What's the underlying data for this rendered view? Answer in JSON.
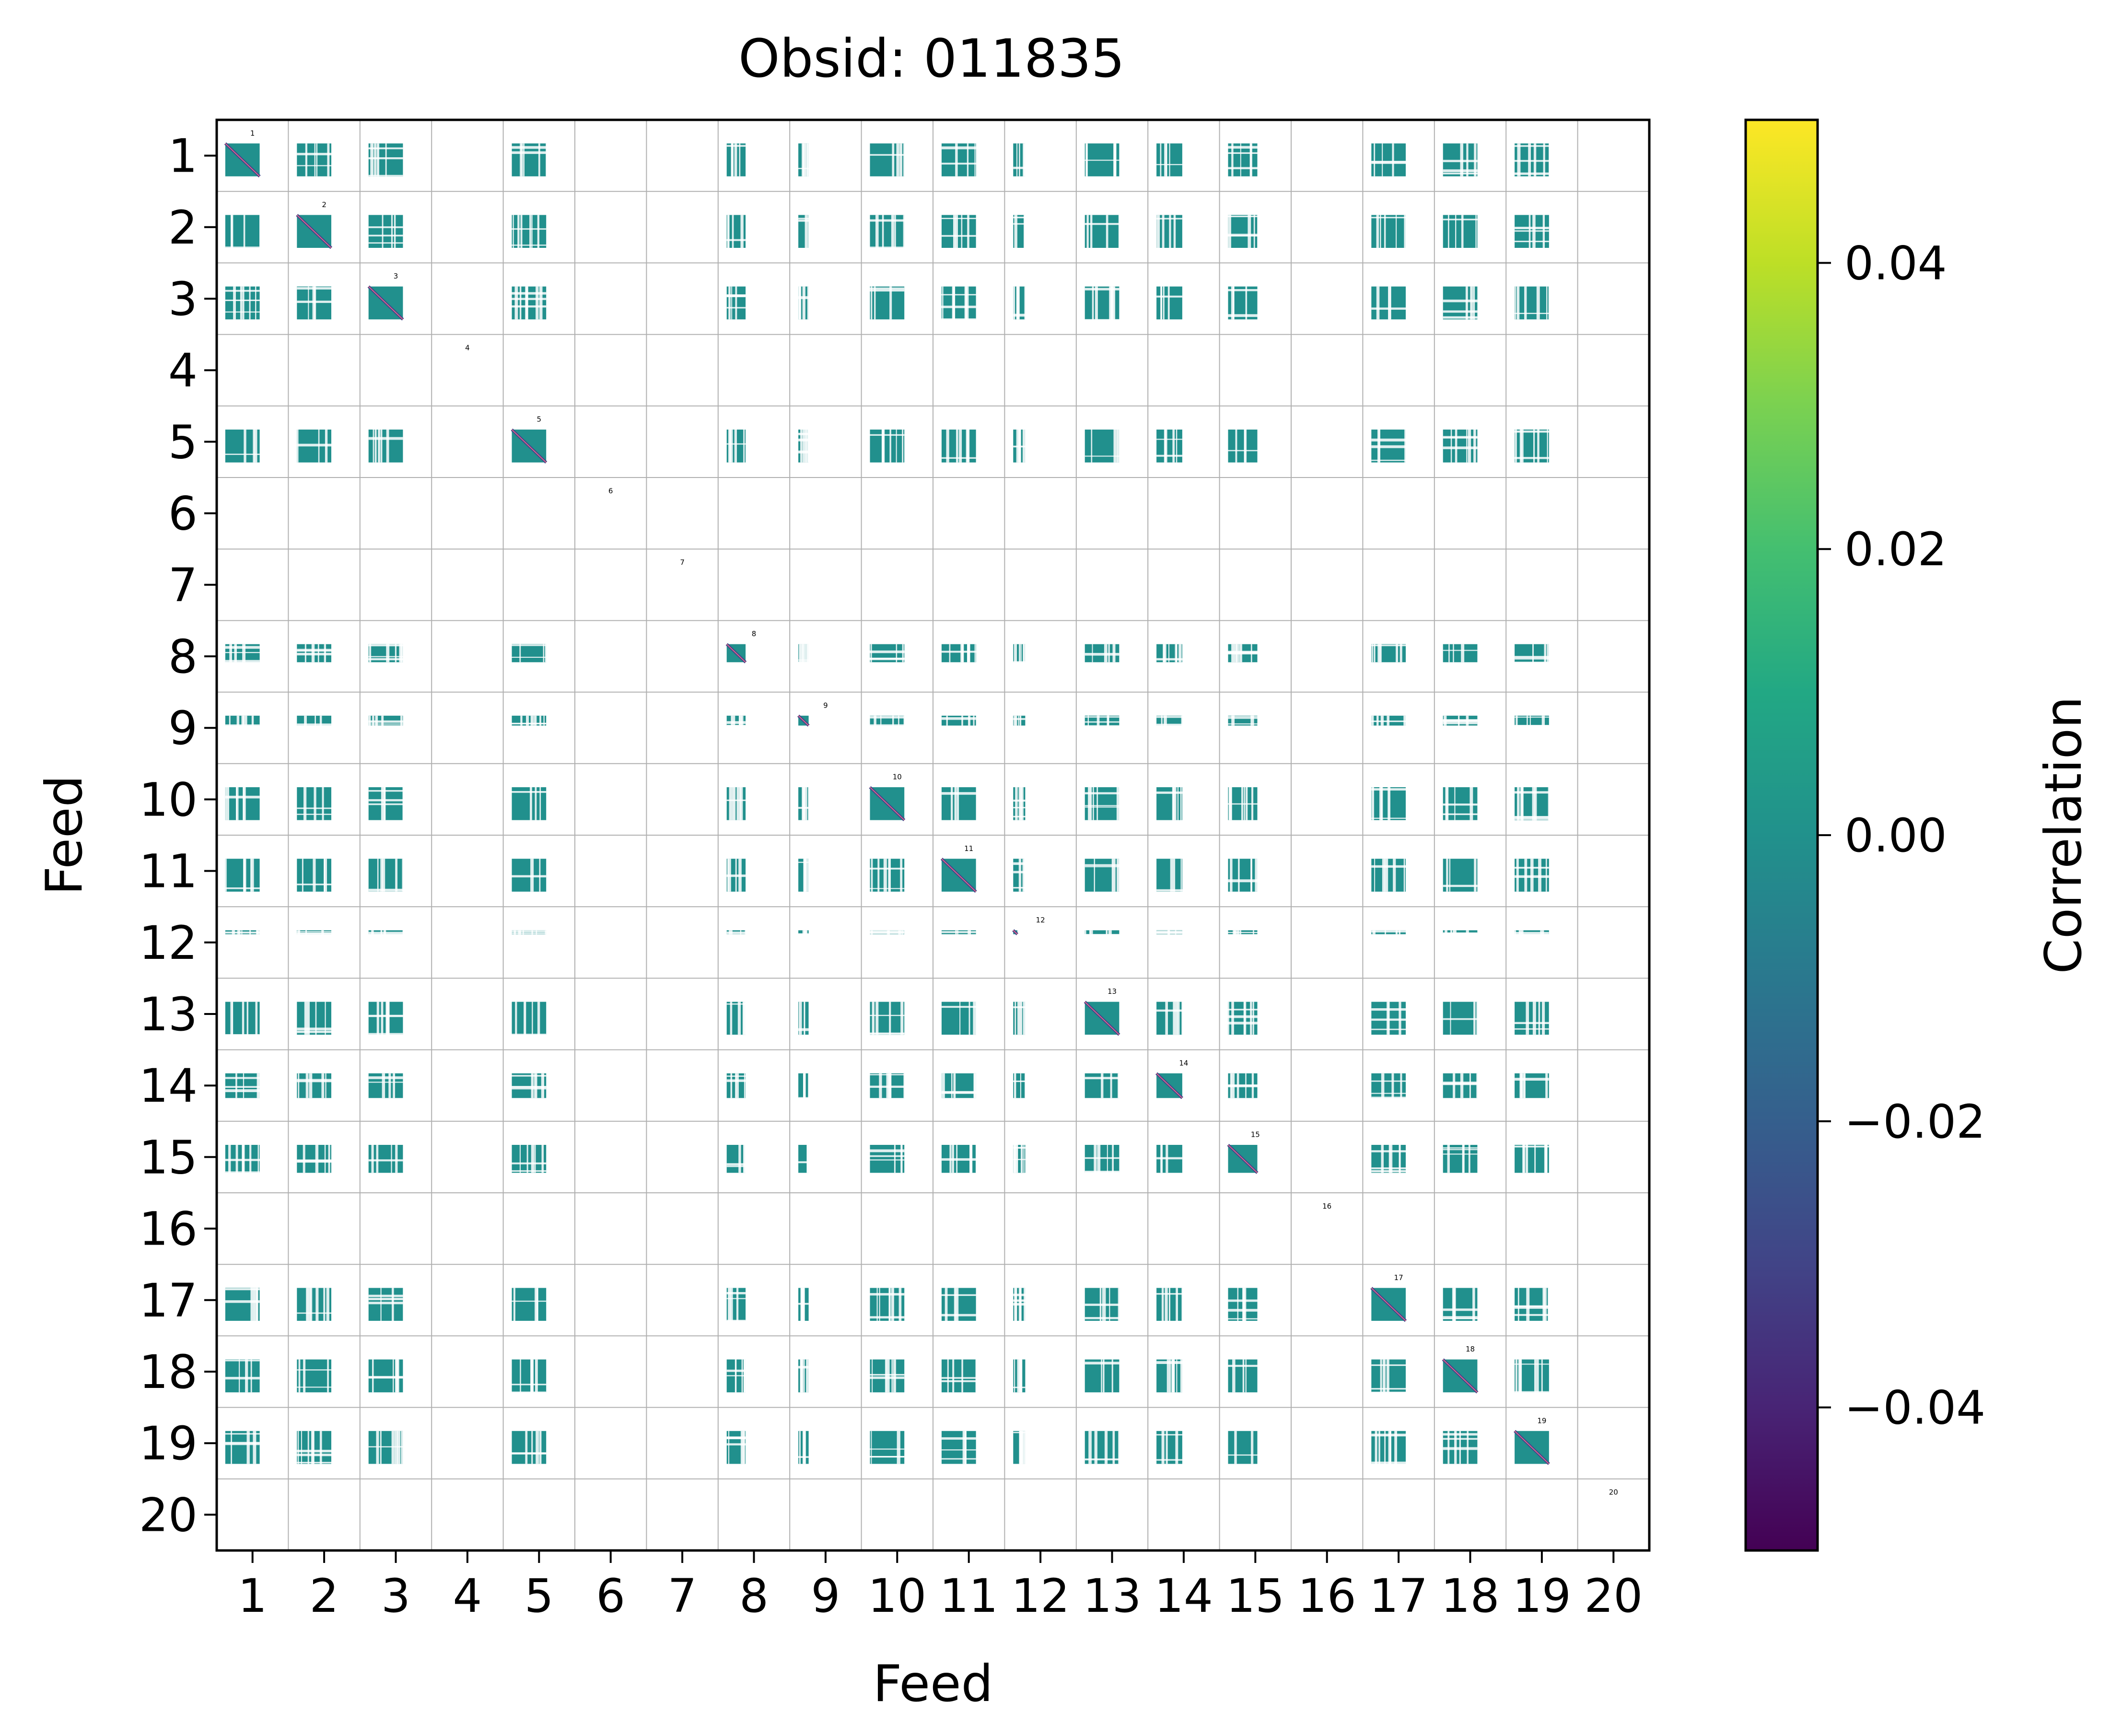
{
  "chart_data": {
    "type": "heatmap",
    "title": "Obsid: 011835",
    "xlabel": "Feed",
    "ylabel": "Feed",
    "feeds": [
      "1",
      "2",
      "3",
      "4",
      "5",
      "6",
      "7",
      "8",
      "9",
      "10",
      "11",
      "12",
      "13",
      "14",
      "15",
      "16",
      "17",
      "18",
      "19",
      "20"
    ],
    "active_feeds": [
      1,
      2,
      3,
      5,
      8,
      9,
      10,
      11,
      12,
      13,
      14,
      15,
      17,
      18,
      19
    ],
    "weak_feeds": [
      12
    ],
    "partial_feeds": {
      "8": 0.55,
      "9": 0.3,
      "14": 0.75,
      "15": 0.85
    },
    "diagonal_labels": [
      "1",
      "2",
      "3",
      "4",
      "5",
      "6",
      "7",
      "8",
      "9",
      "10",
      "11",
      "12",
      "13",
      "14",
      "15",
      "16",
      "17",
      "18",
      "19",
      "20"
    ],
    "offdiagonal_value": 0.0,
    "diagonal_min": -0.05,
    "colorbar": {
      "label": "Correlation",
      "vmin": -0.05,
      "vmax": 0.05,
      "ticks": [
        -0.04,
        -0.02,
        0.0,
        0.02,
        0.04
      ],
      "tick_labels": [
        "−0.04",
        "−0.02",
        "0.00",
        "0.02",
        "0.04"
      ],
      "colormap": "viridis"
    },
    "colors": {
      "teal": "#21908d",
      "diag": "#404a8a",
      "grid": "#b0b0b0"
    }
  }
}
